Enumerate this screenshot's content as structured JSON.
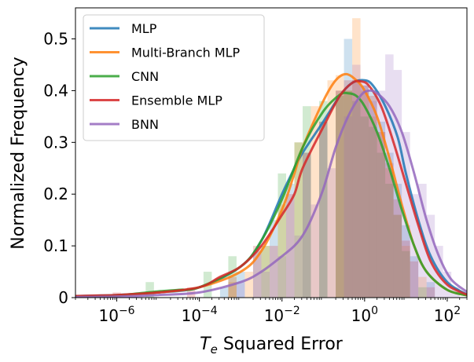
{
  "chart_data": {
    "type": "histogram+kde",
    "x_scale": "log",
    "xlabel_prefix": "T",
    "xlabel_sub": "e",
    "xlabel_rest": " Squared Error",
    "ylabel": "Normalized Frequency",
    "xlim": [
      1e-07,
      300
    ],
    "ylim": [
      0,
      0.56
    ],
    "y_ticks": [
      "0",
      "0.1",
      "0.2",
      "0.3",
      "0.4",
      "0.5"
    ],
    "x_ticks": [
      {
        "value": 1e-06,
        "base": "10",
        "exp": "−6"
      },
      {
        "value": 0.0001,
        "base": "10",
        "exp": "−4"
      },
      {
        "value": 0.01,
        "base": "10",
        "exp": "−2"
      },
      {
        "value": 1,
        "base": "10",
        "exp": "0"
      },
      {
        "value": 100,
        "base": "10",
        "exp": "2"
      }
    ],
    "legend_position": "top-left",
    "series": [
      {
        "name": "MLP",
        "color": "#1f77b4",
        "kde": [
          [
            -7,
            0.003
          ],
          [
            -6,
            0.005
          ],
          [
            -5,
            0.01
          ],
          [
            -4,
            0.02
          ],
          [
            -3,
            0.06
          ],
          [
            -2.5,
            0.11
          ],
          [
            -2,
            0.2
          ],
          [
            -1.7,
            0.25
          ],
          [
            -1.5,
            0.28
          ],
          [
            -1,
            0.34
          ],
          [
            -0.6,
            0.39
          ],
          [
            -0.3,
            0.415
          ],
          [
            0,
            0.42
          ],
          [
            0.2,
            0.41
          ],
          [
            0.5,
            0.37
          ],
          [
            0.8,
            0.31
          ],
          [
            1,
            0.24
          ],
          [
            1.3,
            0.15
          ],
          [
            1.6,
            0.08
          ],
          [
            2,
            0.03
          ],
          [
            2.5,
            0.005
          ]
        ],
        "hist": [
          [
            -3.4,
            0.02
          ],
          [
            -3,
            0.05
          ],
          [
            -2.6,
            0.09
          ],
          [
            -2.2,
            0.15
          ],
          [
            -1.8,
            0.22
          ],
          [
            -1.4,
            0.28
          ],
          [
            -1,
            0.34
          ],
          [
            -0.6,
            0.4
          ],
          [
            -0.4,
            0.5
          ],
          [
            -0.2,
            0.42
          ],
          [
            0,
            0.41
          ],
          [
            0.2,
            0.4
          ],
          [
            0.4,
            0.34
          ],
          [
            0.6,
            0.28
          ],
          [
            0.8,
            0.22
          ],
          [
            1,
            0.14
          ],
          [
            1.2,
            0.08
          ],
          [
            1.6,
            0.03
          ]
        ]
      },
      {
        "name": "Multi-Branch MLP",
        "color": "#ff7f0e",
        "kde": [
          [
            -7,
            0.002
          ],
          [
            -6,
            0.004
          ],
          [
            -5,
            0.01
          ],
          [
            -4,
            0.02
          ],
          [
            -3,
            0.05
          ],
          [
            -2.5,
            0.09
          ],
          [
            -2,
            0.17
          ],
          [
            -1.7,
            0.24
          ],
          [
            -1.5,
            0.29
          ],
          [
            -1,
            0.38
          ],
          [
            -0.7,
            0.42
          ],
          [
            -0.45,
            0.432
          ],
          [
            -0.2,
            0.42
          ],
          [
            0,
            0.4
          ],
          [
            0.3,
            0.35
          ],
          [
            0.6,
            0.27
          ],
          [
            0.9,
            0.18
          ],
          [
            1.2,
            0.1
          ],
          [
            1.5,
            0.05
          ],
          [
            2,
            0.015
          ],
          [
            2.5,
            0.004
          ]
        ],
        "hist": [
          [
            -3.2,
            0.03
          ],
          [
            -2.8,
            0.05
          ],
          [
            -2.4,
            0.1
          ],
          [
            -2,
            0.18
          ],
          [
            -1.6,
            0.3
          ],
          [
            -1.2,
            0.37
          ],
          [
            -0.8,
            0.42
          ],
          [
            -0.6,
            0.43
          ],
          [
            -0.4,
            0.4
          ],
          [
            -0.2,
            0.54
          ],
          [
            0,
            0.4
          ],
          [
            0.2,
            0.35
          ],
          [
            0.4,
            0.32
          ],
          [
            0.6,
            0.25
          ],
          [
            0.8,
            0.16
          ],
          [
            1,
            0.1
          ],
          [
            1.4,
            0.04
          ]
        ]
      },
      {
        "name": "CNN",
        "color": "#2ca02c",
        "kde": [
          [
            -7,
            0.002
          ],
          [
            -6,
            0.004
          ],
          [
            -5.5,
            0.008
          ],
          [
            -5,
            0.012
          ],
          [
            -4.5,
            0.015
          ],
          [
            -4,
            0.02
          ],
          [
            -3,
            0.06
          ],
          [
            -2.5,
            0.11
          ],
          [
            -2,
            0.19
          ],
          [
            -1.5,
            0.29
          ],
          [
            -1,
            0.36
          ],
          [
            -0.6,
            0.392
          ],
          [
            -0.4,
            0.395
          ],
          [
            -0.2,
            0.39
          ],
          [
            0,
            0.37
          ],
          [
            0.3,
            0.32
          ],
          [
            0.6,
            0.25
          ],
          [
            0.9,
            0.17
          ],
          [
            1.2,
            0.1
          ],
          [
            1.5,
            0.05
          ],
          [
            2,
            0.015
          ],
          [
            2.5,
            0.004
          ]
        ],
        "hist": [
          [
            -5.2,
            0.03
          ],
          [
            -3.8,
            0.05
          ],
          [
            -3.2,
            0.08
          ],
          [
            -2.4,
            0.1
          ],
          [
            -2,
            0.24
          ],
          [
            -1.6,
            0.3
          ],
          [
            -1.4,
            0.37
          ],
          [
            -1,
            0.38
          ],
          [
            -0.6,
            0.39
          ],
          [
            -0.4,
            0.4
          ],
          [
            -0.2,
            0.38
          ],
          [
            0,
            0.35
          ],
          [
            0.2,
            0.33
          ],
          [
            0.4,
            0.28
          ],
          [
            0.6,
            0.22
          ],
          [
            0.8,
            0.16
          ],
          [
            1,
            0.09
          ],
          [
            1.4,
            0.02
          ]
        ]
      },
      {
        "name": "Ensemble MLP",
        "color": "#d62728",
        "kde": [
          [
            -7,
            0.003
          ],
          [
            -6.5,
            0.004
          ],
          [
            -6,
            0.005
          ],
          [
            -5,
            0.01
          ],
          [
            -4,
            0.02
          ],
          [
            -3.5,
            0.04
          ],
          [
            -3,
            0.06
          ],
          [
            -2.5,
            0.1
          ],
          [
            -2,
            0.16
          ],
          [
            -1.7,
            0.2
          ],
          [
            -1.5,
            0.25
          ],
          [
            -1,
            0.33
          ],
          [
            -0.6,
            0.39
          ],
          [
            -0.3,
            0.415
          ],
          [
            -0.1,
            0.418
          ],
          [
            0.1,
            0.41
          ],
          [
            0.4,
            0.37
          ],
          [
            0.7,
            0.3
          ],
          [
            1,
            0.22
          ],
          [
            1.3,
            0.14
          ],
          [
            1.6,
            0.07
          ],
          [
            2,
            0.025
          ],
          [
            2.5,
            0.005
          ]
        ],
        "hist": [
          [
            -6,
            0.01
          ],
          [
            -4.2,
            0.02
          ],
          [
            -3.2,
            0.04
          ],
          [
            -2.6,
            0.1
          ],
          [
            -2.2,
            0.1
          ],
          [
            -1.8,
            0.2
          ],
          [
            -1.4,
            0.28
          ],
          [
            -1,
            0.34
          ],
          [
            -0.6,
            0.4
          ],
          [
            -0.4,
            0.42
          ],
          [
            -0.2,
            0.42
          ],
          [
            0,
            0.41
          ],
          [
            0.2,
            0.39
          ],
          [
            0.4,
            0.32
          ],
          [
            0.6,
            0.26
          ],
          [
            0.8,
            0.19
          ],
          [
            1,
            0.11
          ],
          [
            1.2,
            0.07
          ],
          [
            1.6,
            0.02
          ]
        ]
      },
      {
        "name": "BNN",
        "color": "#9467bd",
        "kde": [
          [
            -7,
            0.001
          ],
          [
            -6,
            0.002
          ],
          [
            -5,
            0.005
          ],
          [
            -4,
            0.01
          ],
          [
            -3,
            0.03
          ],
          [
            -2.5,
            0.05
          ],
          [
            -2,
            0.08
          ],
          [
            -1.7,
            0.1
          ],
          [
            -1.5,
            0.12
          ],
          [
            -1.3,
            0.15
          ],
          [
            -1,
            0.21
          ],
          [
            -0.7,
            0.29
          ],
          [
            -0.4,
            0.35
          ],
          [
            -0.1,
            0.39
          ],
          [
            0.1,
            0.4
          ],
          [
            0.3,
            0.395
          ],
          [
            0.6,
            0.37
          ],
          [
            0.9,
            0.32
          ],
          [
            1.2,
            0.24
          ],
          [
            1.5,
            0.15
          ],
          [
            1.8,
            0.08
          ],
          [
            2.1,
            0.035
          ],
          [
            2.5,
            0.01
          ]
        ],
        "hist": [
          [
            -3,
            0.03
          ],
          [
            -2.4,
            0.05
          ],
          [
            -2,
            0.08
          ],
          [
            -1.6,
            0.12
          ],
          [
            -1.2,
            0.18
          ],
          [
            -0.8,
            0.25
          ],
          [
            -0.4,
            0.35
          ],
          [
            -0.2,
            0.45
          ],
          [
            0,
            0.42
          ],
          [
            0.2,
            0.38
          ],
          [
            0.4,
            0.4
          ],
          [
            0.6,
            0.47
          ],
          [
            0.8,
            0.44
          ],
          [
            1,
            0.32
          ],
          [
            1.2,
            0.2
          ],
          [
            1.4,
            0.22
          ],
          [
            1.6,
            0.16
          ],
          [
            1.8,
            0.1
          ],
          [
            2,
            0.05
          ],
          [
            2.2,
            0.02
          ]
        ]
      }
    ]
  }
}
